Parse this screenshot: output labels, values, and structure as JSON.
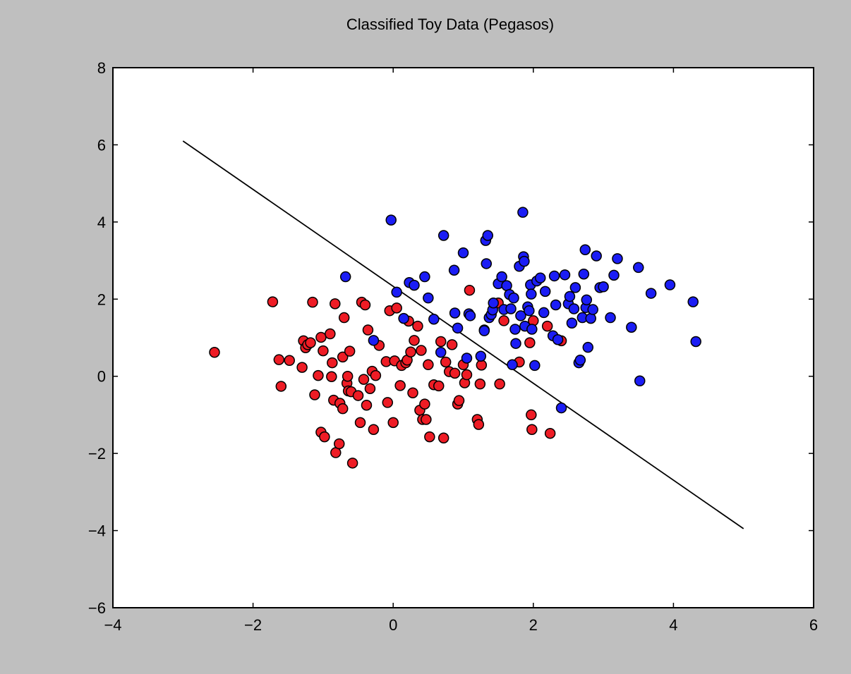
{
  "chart_data": {
    "type": "scatter",
    "title": "Classified Toy Data (Pegasos)",
    "xlabel": "",
    "ylabel": "",
    "xlim": [
      -4,
      6
    ],
    "ylim": [
      -6,
      8
    ],
    "xticks": [
      -4,
      -2,
      0,
      2,
      4,
      6
    ],
    "yticks": [
      -6,
      -4,
      -2,
      0,
      2,
      4,
      6,
      8
    ],
    "xtick_labels": [
      "−4",
      "−2",
      "0",
      "2",
      "4",
      "6"
    ],
    "ytick_labels": [
      "−6",
      "−4",
      "−2",
      "0",
      "2",
      "4",
      "6",
      "8"
    ],
    "grid": false,
    "decision_boundary": {
      "x": [
        -3,
        5
      ],
      "y": [
        6.1,
        -3.95
      ],
      "color": "#000000"
    },
    "series": [
      {
        "color": "#ee1c25",
        "points": [
          [
            -2.55,
            0.62
          ],
          [
            -1.72,
            1.93
          ],
          [
            -1.63,
            0.43
          ],
          [
            -1.6,
            -0.26
          ],
          [
            -1.48,
            0.41
          ],
          [
            -1.3,
            0.23
          ],
          [
            -1.28,
            0.92
          ],
          [
            -1.25,
            0.74
          ],
          [
            -1.22,
            0.82
          ],
          [
            -1.18,
            0.87
          ],
          [
            -1.15,
            1.92
          ],
          [
            -1.12,
            -0.48
          ],
          [
            -1.07,
            0.02
          ],
          [
            -1.03,
            1.01
          ],
          [
            -1.03,
            -1.45
          ],
          [
            -1.0,
            0.66
          ],
          [
            -0.98,
            -1.57
          ],
          [
            -0.9,
            1.1
          ],
          [
            -0.88,
            -0.01
          ],
          [
            -0.87,
            0.35
          ],
          [
            -0.85,
            -0.62
          ],
          [
            -0.83,
            1.88
          ],
          [
            -0.82,
            -1.98
          ],
          [
            -0.77,
            -1.75
          ],
          [
            -0.76,
            -0.7
          ],
          [
            -0.72,
            0.5
          ],
          [
            -0.72,
            -0.84
          ],
          [
            -0.7,
            1.52
          ],
          [
            -0.66,
            -0.18
          ],
          [
            -0.65,
            0.0
          ],
          [
            -0.64,
            -0.38
          ],
          [
            -0.62,
            0.65
          ],
          [
            -0.6,
            -0.4
          ],
          [
            -0.58,
            -2.25
          ],
          [
            -0.5,
            -0.5
          ],
          [
            -0.47,
            -1.2
          ],
          [
            -0.45,
            1.92
          ],
          [
            -0.42,
            -0.08
          ],
          [
            -0.4,
            1.85
          ],
          [
            -0.38,
            -0.75
          ],
          [
            -0.36,
            1.2
          ],
          [
            -0.33,
            -0.32
          ],
          [
            -0.3,
            0.13
          ],
          [
            -0.28,
            -1.38
          ],
          [
            -0.25,
            0.02
          ],
          [
            -0.2,
            0.8
          ],
          [
            -0.1,
            0.38
          ],
          [
            -0.08,
            -0.68
          ],
          [
            -0.05,
            1.7
          ],
          [
            0.0,
            -1.2
          ],
          [
            0.02,
            0.4
          ],
          [
            0.05,
            1.77
          ],
          [
            0.1,
            -0.24
          ],
          [
            0.12,
            0.28
          ],
          [
            0.18,
            0.35
          ],
          [
            0.2,
            0.42
          ],
          [
            0.22,
            1.43
          ],
          [
            0.25,
            0.63
          ],
          [
            0.28,
            -0.43
          ],
          [
            0.3,
            0.93
          ],
          [
            0.35,
            1.3
          ],
          [
            0.38,
            -0.88
          ],
          [
            0.4,
            0.67
          ],
          [
            0.42,
            -1.12
          ],
          [
            0.45,
            -0.72
          ],
          [
            0.47,
            -1.12
          ],
          [
            0.5,
            0.3
          ],
          [
            0.52,
            -1.57
          ],
          [
            0.58,
            -0.22
          ],
          [
            0.65,
            -0.25
          ],
          [
            0.68,
            0.9
          ],
          [
            0.72,
            -1.6
          ],
          [
            0.75,
            0.37
          ],
          [
            0.8,
            0.12
          ],
          [
            0.84,
            0.82
          ],
          [
            0.88,
            0.08
          ],
          [
            0.92,
            -0.72
          ],
          [
            0.94,
            -0.63
          ],
          [
            1.0,
            0.3
          ],
          [
            1.02,
            -0.17
          ],
          [
            1.05,
            0.04
          ],
          [
            1.09,
            2.23
          ],
          [
            1.2,
            -1.12
          ],
          [
            1.22,
            -1.25
          ],
          [
            1.24,
            -0.2
          ],
          [
            1.26,
            0.29
          ],
          [
            1.3,
            1.2
          ],
          [
            1.5,
            1.9
          ],
          [
            1.52,
            -0.2
          ],
          [
            1.58,
            1.44
          ],
          [
            1.8,
            0.37
          ],
          [
            1.95,
            0.87
          ],
          [
            1.97,
            -1.0
          ],
          [
            1.98,
            -1.38
          ],
          [
            2.0,
            1.44
          ],
          [
            2.2,
            1.3
          ],
          [
            2.24,
            -1.48
          ],
          [
            2.4,
            0.92
          ]
        ]
      },
      {
        "color": "#1b1df5",
        "points": [
          [
            -0.68,
            2.58
          ],
          [
            -0.28,
            0.93
          ],
          [
            -0.03,
            4.05
          ],
          [
            0.05,
            2.18
          ],
          [
            0.15,
            1.5
          ],
          [
            0.23,
            2.43
          ],
          [
            0.3,
            2.36
          ],
          [
            0.45,
            2.58
          ],
          [
            0.5,
            2.03
          ],
          [
            0.58,
            1.48
          ],
          [
            0.68,
            0.62
          ],
          [
            0.72,
            3.65
          ],
          [
            0.87,
            2.75
          ],
          [
            0.88,
            1.64
          ],
          [
            0.92,
            1.25
          ],
          [
            1.0,
            3.2
          ],
          [
            1.05,
            0.47
          ],
          [
            1.08,
            1.62
          ],
          [
            1.1,
            1.57
          ],
          [
            1.25,
            0.52
          ],
          [
            1.3,
            1.18
          ],
          [
            1.32,
            3.52
          ],
          [
            1.33,
            2.92
          ],
          [
            1.35,
            3.65
          ],
          [
            1.37,
            1.52
          ],
          [
            1.4,
            1.6
          ],
          [
            1.42,
            1.72
          ],
          [
            1.43,
            1.9
          ],
          [
            1.5,
            2.4
          ],
          [
            1.55,
            2.58
          ],
          [
            1.58,
            1.73
          ],
          [
            1.62,
            2.35
          ],
          [
            1.66,
            2.12
          ],
          [
            1.68,
            1.75
          ],
          [
            1.7,
            0.3
          ],
          [
            1.72,
            2.03
          ],
          [
            1.74,
            1.22
          ],
          [
            1.75,
            0.85
          ],
          [
            1.8,
            2.85
          ],
          [
            1.82,
            1.57
          ],
          [
            1.85,
            4.25
          ],
          [
            1.86,
            3.1
          ],
          [
            1.87,
            2.98
          ],
          [
            1.88,
            1.3
          ],
          [
            1.92,
            1.8
          ],
          [
            1.94,
            1.7
          ],
          [
            1.96,
            2.37
          ],
          [
            1.97,
            2.13
          ],
          [
            1.98,
            1.22
          ],
          [
            2.02,
            0.28
          ],
          [
            2.05,
            2.47
          ],
          [
            2.1,
            2.55
          ],
          [
            2.15,
            1.65
          ],
          [
            2.17,
            2.2
          ],
          [
            2.28,
            1.05
          ],
          [
            2.3,
            2.6
          ],
          [
            2.32,
            1.85
          ],
          [
            2.35,
            0.95
          ],
          [
            2.45,
            2.63
          ],
          [
            2.5,
            1.88
          ],
          [
            2.52,
            2.07
          ],
          [
            2.55,
            1.38
          ],
          [
            2.58,
            1.75
          ],
          [
            2.6,
            2.3
          ],
          [
            2.65,
            0.35
          ],
          [
            2.67,
            0.42
          ],
          [
            2.7,
            1.52
          ],
          [
            2.72,
            2.65
          ],
          [
            2.74,
            3.28
          ],
          [
            2.75,
            1.78
          ],
          [
            2.76,
            1.98
          ],
          [
            2.78,
            0.75
          ],
          [
            2.82,
            1.5
          ],
          [
            2.85,
            1.73
          ],
          [
            2.9,
            3.12
          ],
          [
            2.95,
            2.3
          ],
          [
            3.0,
            2.32
          ],
          [
            3.1,
            1.52
          ],
          [
            3.15,
            2.62
          ],
          [
            3.2,
            3.05
          ],
          [
            3.4,
            1.27
          ],
          [
            3.5,
            2.82
          ],
          [
            3.52,
            -0.12
          ],
          [
            3.68,
            2.15
          ],
          [
            3.95,
            2.37
          ],
          [
            4.28,
            1.93
          ],
          [
            4.32,
            0.9
          ],
          [
            2.4,
            -0.82
          ]
        ]
      }
    ]
  }
}
